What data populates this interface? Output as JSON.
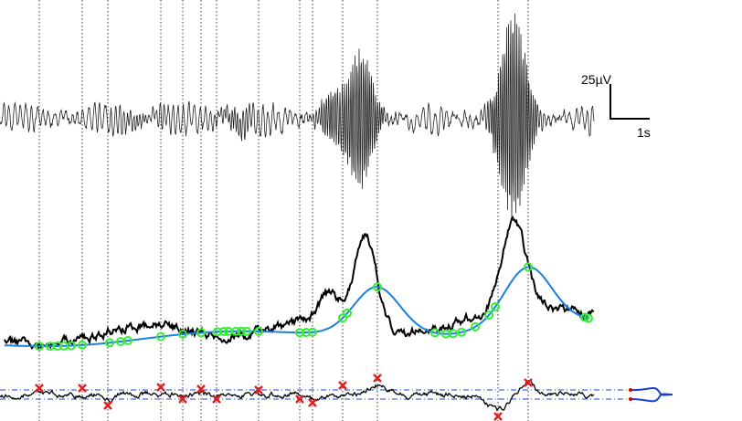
{
  "scale_bar": {
    "amplitude_label": "25µV",
    "time_label": "1s"
  }
}
